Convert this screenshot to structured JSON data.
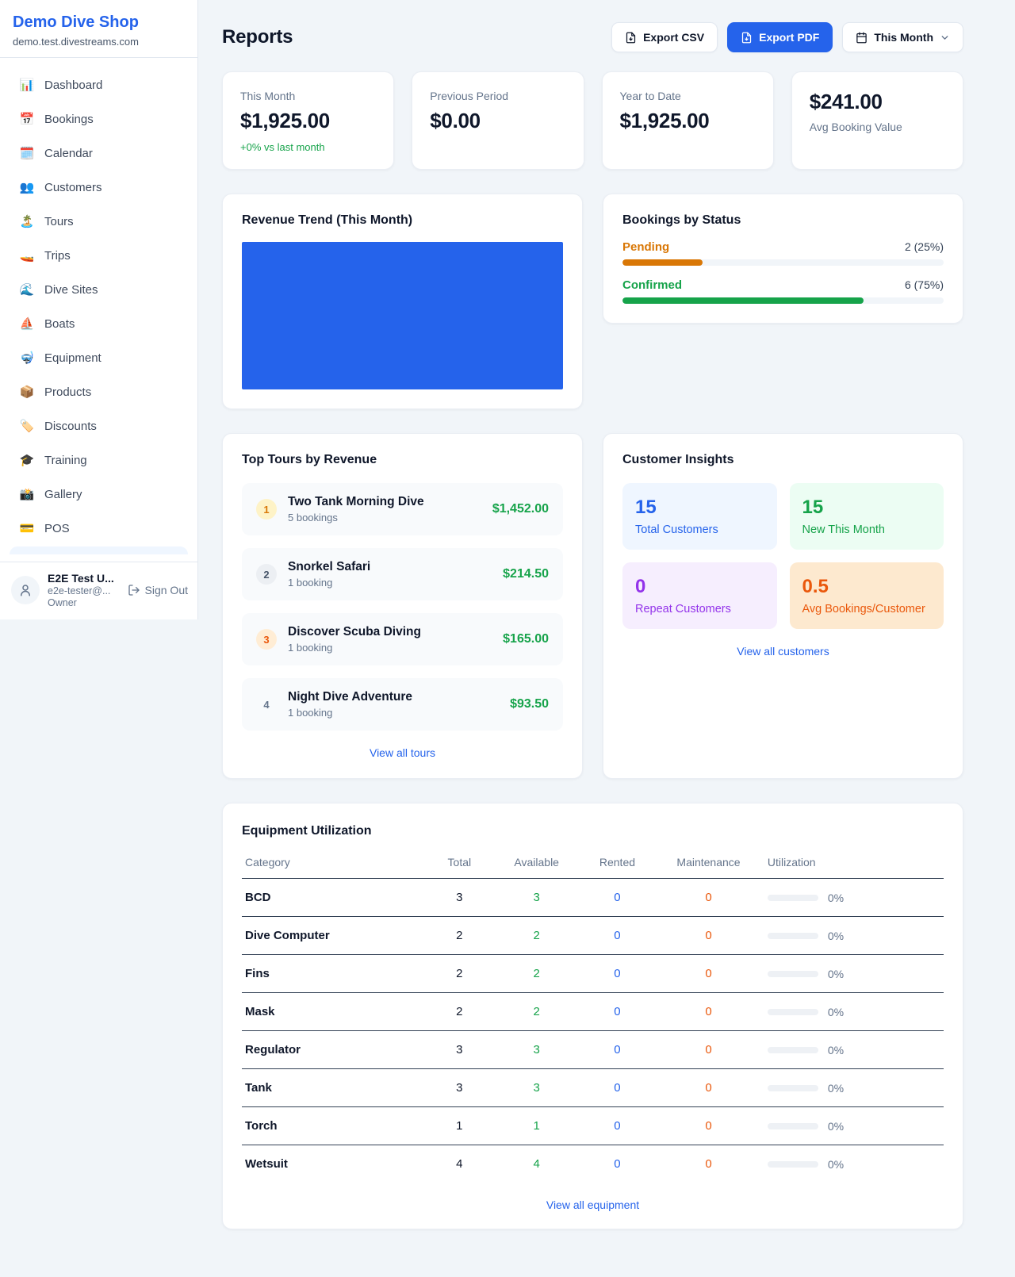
{
  "sidebar": {
    "brand": {
      "name": "Demo Dive Shop",
      "domain": "demo.test.divestreams.com"
    },
    "nav": [
      {
        "icon": "📊",
        "label": "Dashboard"
      },
      {
        "icon": "📅",
        "label": "Bookings"
      },
      {
        "icon": "🗓️",
        "label": "Calendar"
      },
      {
        "icon": "👥",
        "label": "Customers"
      },
      {
        "icon": "🏝️",
        "label": "Tours"
      },
      {
        "icon": "🚤",
        "label": "Trips"
      },
      {
        "icon": "🌊",
        "label": "Dive Sites"
      },
      {
        "icon": "⛵",
        "label": "Boats"
      },
      {
        "icon": "🤿",
        "label": "Equipment"
      },
      {
        "icon": "📦",
        "label": "Products"
      },
      {
        "icon": "🏷️",
        "label": "Discounts"
      },
      {
        "icon": "🎓",
        "label": "Training"
      },
      {
        "icon": "📸",
        "label": "Gallery"
      },
      {
        "icon": "💳",
        "label": "POS"
      }
    ],
    "user": {
      "name": "E2E Test U...",
      "email": "e2e-tester@...",
      "role": "Owner",
      "sign_out_label": "Sign Out"
    }
  },
  "header": {
    "title": "Reports",
    "export_csv_label": "Export CSV",
    "export_pdf_label": "Export PDF",
    "period_label": "This Month"
  },
  "stats": [
    {
      "label": "This Month",
      "value": "$1,925.00",
      "delta": "+0% vs last month"
    },
    {
      "label": "Previous Period",
      "value": "$0.00"
    },
    {
      "label": "Year to Date",
      "value": "$1,925.00"
    },
    {
      "label": "Avg Booking Value",
      "value": "$241.00"
    }
  ],
  "revenue_trend": {
    "title": "Revenue Trend (This Month)",
    "bar_color": "#2563eb"
  },
  "bookings_by_status": {
    "title": "Bookings by Status",
    "items": [
      {
        "label": "Pending",
        "count_text": "2 (25%)",
        "percent": 25,
        "color": "#d97706"
      },
      {
        "label": "Confirmed",
        "count_text": "6 (75%)",
        "percent": 75,
        "color": "#16a34a"
      }
    ]
  },
  "top_tours": {
    "title": "Top Tours by Revenue",
    "items": [
      {
        "rank": "1",
        "name": "Two Tank Morning Dive",
        "bookings": "5 bookings",
        "revenue": "$1,452.00"
      },
      {
        "rank": "2",
        "name": "Snorkel Safari",
        "bookings": "1 booking",
        "revenue": "$214.50"
      },
      {
        "rank": "3",
        "name": "Discover Scuba Diving",
        "bookings": "1 booking",
        "revenue": "$165.00"
      },
      {
        "rank": "4",
        "name": "Night Dive Adventure",
        "bookings": "1 booking",
        "revenue": "$93.50"
      }
    ],
    "view_all_label": "View all tours"
  },
  "customer_insights": {
    "title": "Customer Insights",
    "tiles": [
      {
        "value": "15",
        "label": "Total Customers",
        "fg": "#2563eb",
        "bg": "#eff6ff"
      },
      {
        "value": "15",
        "label": "New This Month",
        "fg": "#16a34a",
        "bg": "#ecfdf3"
      },
      {
        "value": "0",
        "label": "Repeat Customers",
        "fg": "#9333ea",
        "bg": "#f6eefe"
      },
      {
        "value": "0.5",
        "label": "Avg Bookings/Customer",
        "fg": "#ea580c",
        "bg": "#fde9cf"
      }
    ],
    "view_all_label": "View all customers"
  },
  "equipment": {
    "title": "Equipment Utilization",
    "columns": [
      "Category",
      "Total",
      "Available",
      "Rented",
      "Maintenance",
      "Utilization"
    ],
    "rows": [
      {
        "category": "BCD",
        "total": "3",
        "available": "3",
        "rented": "0",
        "maintenance": "0",
        "utilization_percent": 0,
        "utilization_label": "0%"
      },
      {
        "category": "Dive Computer",
        "total": "2",
        "available": "2",
        "rented": "0",
        "maintenance": "0",
        "utilization_percent": 0,
        "utilization_label": "0%"
      },
      {
        "category": "Fins",
        "total": "2",
        "available": "2",
        "rented": "0",
        "maintenance": "0",
        "utilization_percent": 0,
        "utilization_label": "0%"
      },
      {
        "category": "Mask",
        "total": "2",
        "available": "2",
        "rented": "0",
        "maintenance": "0",
        "utilization_percent": 0,
        "utilization_label": "0%"
      },
      {
        "category": "Regulator",
        "total": "3",
        "available": "3",
        "rented": "0",
        "maintenance": "0",
        "utilization_percent": 0,
        "utilization_label": "0%"
      },
      {
        "category": "Tank",
        "total": "3",
        "available": "3",
        "rented": "0",
        "maintenance": "0",
        "utilization_percent": 0,
        "utilization_label": "0%"
      },
      {
        "category": "Torch",
        "total": "1",
        "available": "1",
        "rented": "0",
        "maintenance": "0",
        "utilization_percent": 0,
        "utilization_label": "0%"
      },
      {
        "category": "Wetsuit",
        "total": "4",
        "available": "4",
        "rented": "0",
        "maintenance": "0",
        "utilization_percent": 0,
        "utilization_label": "0%"
      }
    ],
    "view_all_label": "View all equipment"
  }
}
